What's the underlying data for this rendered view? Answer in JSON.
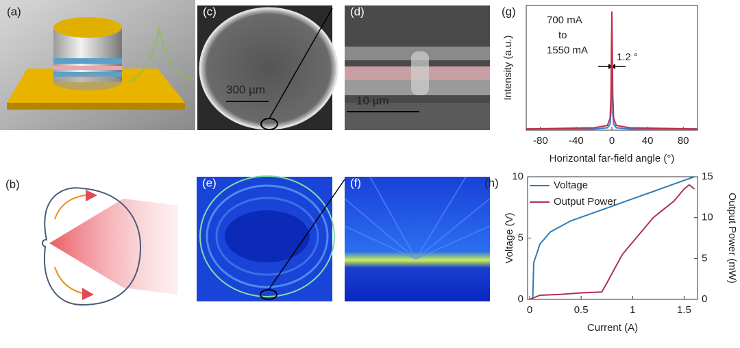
{
  "panels": [
    {
      "label": "(a)"
    },
    {
      "label": "(b)"
    },
    {
      "label": "(c)",
      "scale_bar": "300 µm"
    },
    {
      "label": "(d)",
      "scale_bar": "10 µm"
    },
    {
      "label": "(e)"
    },
    {
      "label": "(f)"
    }
  ],
  "chart_data": [
    {
      "type": "line",
      "panel_label": "(g)",
      "x_label": "Horizontal far-field angle (°)",
      "y_label": "Intensity (a.u.)",
      "annotations": [
        "700 mA",
        "to",
        "1550 mA",
        "1.2 °"
      ],
      "xlim": [
        -96,
        96
      ],
      "xticks": [
        -80,
        -40,
        0,
        40,
        80
      ],
      "ylim": [
        0,
        1.05
      ],
      "series": [
        {
          "color": "#3a7bd5",
          "x": [
            -96,
            -20,
            -5,
            -2,
            -1,
            -0.5,
            0,
            0.5,
            1,
            2,
            5,
            20,
            96
          ],
          "values": [
            0.01,
            0.01,
            0.02,
            0.05,
            0.15,
            0.35,
            0.5,
            0.35,
            0.15,
            0.05,
            0.02,
            0.01,
            0.01
          ]
        },
        {
          "color": "#c0304a",
          "x": [
            -96,
            -20,
            -5,
            -2,
            -1,
            -0.6,
            0,
            0.6,
            1,
            2,
            5,
            20,
            96
          ],
          "values": [
            0.01,
            0.02,
            0.04,
            0.1,
            0.3,
            0.6,
            1,
            0.6,
            0.3,
            0.1,
            0.04,
            0.02,
            0.01
          ]
        }
      ]
    },
    {
      "type": "line",
      "panel_label": "(h)",
      "x_label": "Current (A)",
      "y_label": "Voltage (V)",
      "y2_label": "Output Power (mW)",
      "xlim": [
        -0.02,
        1.63
      ],
      "xticks": [
        0,
        0.5,
        1,
        1.5
      ],
      "ylim": [
        0,
        10
      ],
      "yticks": [
        0,
        5,
        10
      ],
      "y2lim": [
        0,
        15
      ],
      "y2ticks": [
        0,
        5,
        10,
        15
      ],
      "legend": "upper left",
      "series": [
        {
          "name": "Voltage",
          "color": "#2e7db8",
          "x": [
            0.03,
            0.04,
            0.1,
            0.2,
            0.4,
            0.6,
            0.8,
            1.0,
            1.2,
            1.4,
            1.6
          ],
          "values": [
            0,
            3,
            4.5,
            5.5,
            6.4,
            7.0,
            7.6,
            8.2,
            8.8,
            9.4,
            10
          ]
        },
        {
          "name": "Output Power",
          "color": "#b0304e",
          "axis": "y2",
          "x": [
            0,
            0.1,
            0.3,
            0.5,
            0.7,
            0.75,
            0.9,
            1.0,
            1.1,
            1.2,
            1.3,
            1.4,
            1.5,
            1.55,
            1.6
          ],
          "values": [
            0,
            0.5,
            0.6,
            0.8,
            0.9,
            2,
            5.5,
            7,
            8.5,
            10,
            11,
            12,
            13.5,
            14,
            13.5
          ]
        }
      ]
    }
  ]
}
